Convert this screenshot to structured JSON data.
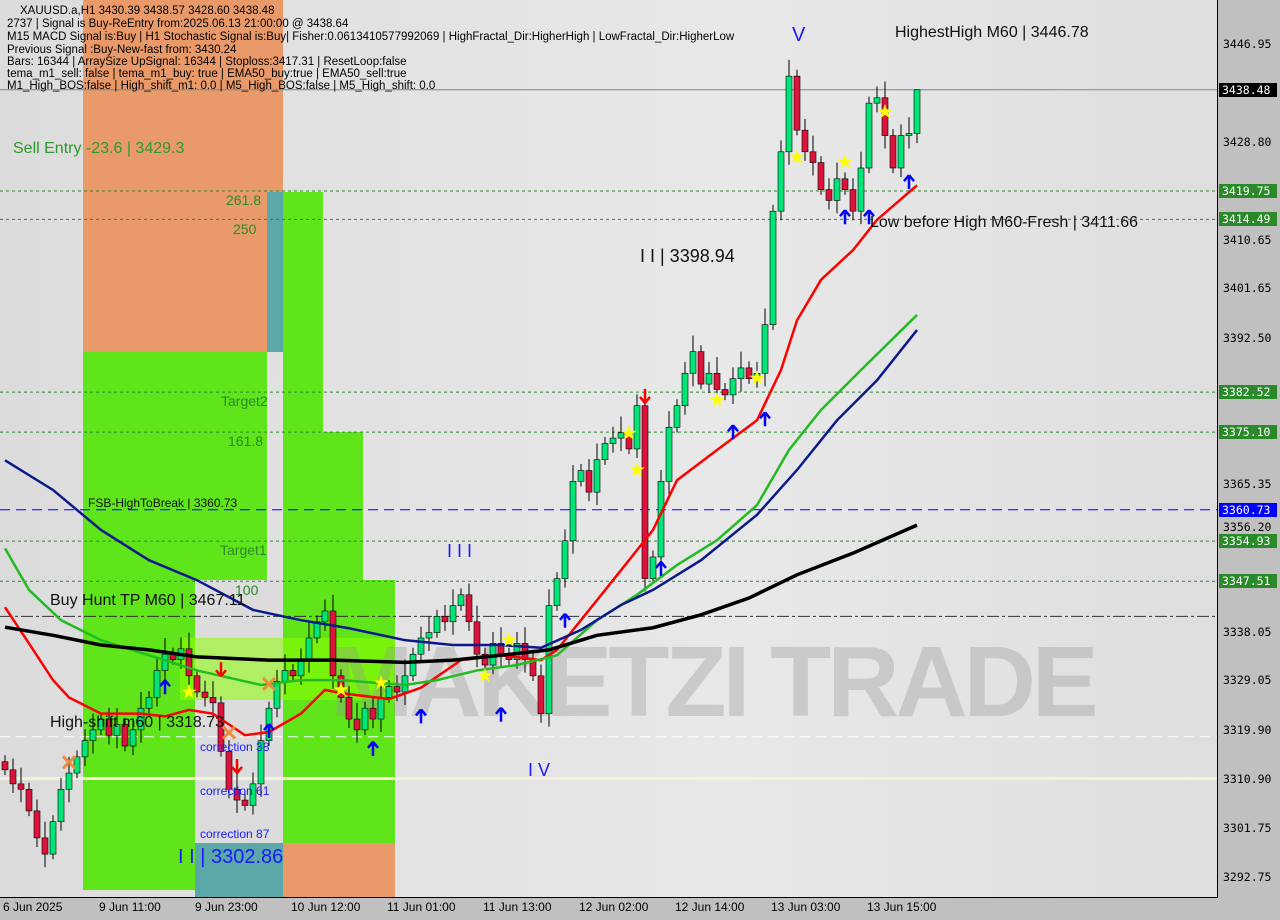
{
  "header": {
    "symbol_line": "XAUUSD.a,H1  3430.39 3438.57 3428.60 3438.48",
    "lines": [
      "2737 | Signal is Buy-ReEntry from:2025.06.13 21:00:00 @ 3438.64",
      "M15 MACD Signal is:Buy | H1 Stochastic Signal is:Buy| Fisher:0.0613410577992069 | HighFractal_Dir:HigherHigh | LowFractal_Dir:HigherLow",
      "Previous Signal :Buy-New-fast from: 3430.24",
      "Bars: 16344 | ArraySize UpSignal: 16344 | Stoploss:3417.31 | ResetLoop:false",
      "tema_m1_sell: false | tema_m1_buy: true | EMA50_buy:true | EMA50_sell:true",
      "M1_High_BOS:false | High_shift_m1: 0.0 | M5_High_BOS:false | M5_High_shift: 0.0"
    ]
  },
  "watermark": "MAKETZI TRADE",
  "labels": {
    "highest_high": "HighestHigh    M60 | 3446.78",
    "sell_entry": "Sell Entry -23.6 | 3429.3",
    "fib_2618": "261.8",
    "fib_250": "250",
    "target2": "Target2",
    "fib_1618": "161.8",
    "fsb": "FSB-HighToBreak | 3360.73",
    "target1": "Target1",
    "fib_100": "100",
    "buy_hunt": "Buy Hunt TP M60 | 3467.11",
    "high_shift": "High-shift m60 | 3318.73",
    "corr38": "correction 38",
    "corr61": "correction 61",
    "corr87": "correction 87",
    "wave2_low": "I I | 3302.86",
    "wave2_high": "I I | 3398.94",
    "wave3": "I I I",
    "wave4": "I V",
    "wave5": "V",
    "low_before_high": "Low before High    M60-Fresh | 3411.66"
  },
  "chart_data": {
    "type": "candlestick",
    "symbol": "XAUUSD.a",
    "timeframe": "H1",
    "ylim": [
      3288,
      3452
    ],
    "y_ticks": [
      "3446.95",
      "3428.80",
      "3410.65",
      "3401.65",
      "3392.50",
      "3365.35",
      "3356.20",
      "3338.05",
      "3329.05",
      "3319.90",
      "3310.90",
      "3301.75",
      "3292.75"
    ],
    "x_ticks": [
      "6 Jun 2025",
      "9 Jun 11:00",
      "9 Jun 23:00",
      "10 Jun 12:00",
      "11 Jun 01:00",
      "11 Jun 13:00",
      "12 Jun 02:00",
      "12 Jun 14:00",
      "13 Jun 03:00",
      "13 Jun 15:00"
    ],
    "last_candle": {
      "open": 3430.39,
      "high": 3438.57,
      "low": 3428.6,
      "close": 3438.48
    },
    "closes": [
      3312.6,
      3310,
      3309,
      3305,
      3300,
      3297,
      3303,
      3309,
      3312,
      3315,
      3318,
      3320,
      3322,
      3319,
      3321,
      3317,
      3320,
      3324,
      3326,
      3331,
      3334,
      3333,
      3335,
      3330,
      3327,
      3326,
      3325,
      3316,
      3309,
      3307,
      3306,
      3310,
      3318,
      3324,
      3329,
      3331,
      3330,
      3333,
      3337,
      3340,
      3342,
      3330,
      3326,
      3322,
      3320,
      3324,
      3322,
      3326,
      3328,
      3327,
      3330,
      3334,
      3337,
      3338,
      3341,
      3340,
      3343,
      3345,
      3340,
      3334,
      3332,
      3336,
      3334,
      3333,
      3336,
      3333,
      3330,
      3323,
      3343,
      3348,
      3355,
      3366,
      3368,
      3364,
      3370,
      3373,
      3374,
      3375,
      3372,
      3380,
      3348,
      3352,
      3366,
      3376,
      3380,
      3386,
      3390,
      3384,
      3386,
      3383,
      3382,
      3385,
      3387,
      3385,
      3386,
      3395,
      3416,
      3427,
      3441,
      3431,
      3427,
      3425,
      3420,
      3418,
      3422,
      3420,
      3416,
      3424,
      3436,
      3437,
      3430,
      3424,
      3430,
      3430.39,
      3438.48
    ],
    "moving_averages": [
      {
        "color": "#ff0000",
        "points": [
          [
            0,
            3342.7
          ],
          [
            3,
            3336
          ],
          [
            6,
            3329.2
          ],
          [
            8,
            3326
          ],
          [
            12,
            3323
          ],
          [
            17,
            3323
          ],
          [
            20,
            3322.5
          ],
          [
            23,
            3323.7
          ],
          [
            26,
            3323
          ],
          [
            30,
            3319
          ],
          [
            33,
            3319.6
          ],
          [
            37,
            3323
          ],
          [
            40,
            3327.4
          ],
          [
            42,
            3326.8
          ],
          [
            48,
            3325.7
          ],
          [
            52,
            3327.8
          ],
          [
            57,
            3332.9
          ],
          [
            62,
            3333.8
          ],
          [
            67,
            3332.9
          ],
          [
            69,
            3334.8
          ],
          [
            74,
            3344
          ],
          [
            78,
            3351.4
          ],
          [
            81,
            3357
          ],
          [
            84,
            3366.2
          ],
          [
            89,
            3371.8
          ],
          [
            94,
            3377.3
          ],
          [
            97,
            3386.6
          ],
          [
            99,
            3395.8
          ],
          [
            102,
            3403.3
          ],
          [
            106,
            3408.8
          ],
          [
            109,
            3414.4
          ],
          [
            114,
            3420.8
          ]
        ]
      },
      {
        "color": "#22bb22",
        "points": [
          [
            0,
            3353.6
          ],
          [
            3,
            3345.9
          ],
          [
            7,
            3340.3
          ],
          [
            12,
            3336.6
          ],
          [
            18,
            3333.8
          ],
          [
            24,
            3331
          ],
          [
            32,
            3328.3
          ],
          [
            37,
            3329.2
          ],
          [
            42,
            3329.2
          ],
          [
            50,
            3328.3
          ],
          [
            54,
            3329.2
          ],
          [
            59,
            3331
          ],
          [
            64,
            3332
          ],
          [
            69,
            3333.8
          ],
          [
            74,
            3340.3
          ],
          [
            79,
            3345
          ],
          [
            84,
            3350.5
          ],
          [
            89,
            3355.1
          ],
          [
            94,
            3361.6
          ],
          [
            98,
            3371.8
          ],
          [
            102,
            3379.2
          ],
          [
            107,
            3386.6
          ],
          [
            114,
            3396.8
          ]
        ]
      },
      {
        "color": "#0a1a8a",
        "points": [
          [
            0,
            3369.9
          ],
          [
            6,
            3364.4
          ],
          [
            12,
            3357
          ],
          [
            18,
            3351.4
          ],
          [
            24,
            3347.7
          ],
          [
            31,
            3342.2
          ],
          [
            37,
            3340.3
          ],
          [
            43,
            3338.8
          ],
          [
            50,
            3336.6
          ],
          [
            56,
            3335.7
          ],
          [
            62,
            3335.7
          ],
          [
            67,
            3335.2
          ],
          [
            72,
            3338.5
          ],
          [
            77,
            3343.1
          ],
          [
            81,
            3345.9
          ],
          [
            87,
            3351.4
          ],
          [
            94,
            3359.8
          ],
          [
            99,
            3368.1
          ],
          [
            104,
            3377.3
          ],
          [
            109,
            3384.7
          ],
          [
            114,
            3394
          ]
        ]
      },
      {
        "color": "#000000",
        "points": [
          [
            0,
            3339
          ],
          [
            6,
            3337.5
          ],
          [
            12,
            3335.7
          ],
          [
            18,
            3334.8
          ],
          [
            24,
            3333.5
          ],
          [
            33,
            3332.9
          ],
          [
            41,
            3332.9
          ],
          [
            50,
            3332.5
          ],
          [
            56,
            3332.9
          ],
          [
            62,
            3333.8
          ],
          [
            68,
            3334.8
          ],
          [
            74,
            3337.5
          ],
          [
            81,
            3338.9
          ],
          [
            87,
            3341.3
          ],
          [
            93,
            3344.4
          ],
          [
            99,
            3348.7
          ],
          [
            106,
            3352.7
          ],
          [
            114,
            3357.9
          ]
        ]
      }
    ],
    "levels": [
      {
        "price": 3438.48,
        "style": "solid",
        "color": "#6f88a8",
        "tag": "3438.48",
        "tag_color": "#000000"
      },
      {
        "price": 3419.75,
        "style": "dotted",
        "color": "#2a8a2a",
        "tag": "3419.75",
        "tag_color": "#2a8a2a"
      },
      {
        "price": 3414.49,
        "style": "dotted",
        "color": "#2a8a2a",
        "tag": "3414.49",
        "tag_color": "#2a8a2a"
      },
      {
        "price": 3382.52,
        "style": "dotted",
        "color": "#2a8a2a",
        "tag": "3382.52",
        "tag_color": "#2a8a2a"
      },
      {
        "price": 3375.1,
        "style": "dotted",
        "color": "#2a8a2a",
        "tag": "3375.10",
        "tag_color": "#2a8a2a"
      },
      {
        "price": 3360.73,
        "style": "dashed",
        "color": "#0000ff",
        "tag": "3360.73",
        "tag_color": "#0000ff"
      },
      {
        "price": 3354.93,
        "style": "dotted",
        "color": "#2a8a2a",
        "tag": "3354.93",
        "tag_color": "#2a8a2a"
      },
      {
        "price": 3347.51,
        "style": "dotted",
        "color": "#2a8a2a",
        "tag": "3347.51",
        "tag_color": "#2a8a2a"
      },
      {
        "price": 3341.0,
        "style": "dashdot",
        "color": "#333333"
      },
      {
        "price": 3318.73,
        "style": "dashed",
        "color": "#ffffff"
      },
      {
        "price": 3311.0,
        "style": "thick",
        "color": "#f4f2d8"
      }
    ],
    "signals": {
      "buy_arrows": [
        [
          20,
          3327.7
        ],
        [
          33,
          3319.6
        ],
        [
          46,
          3316.3
        ],
        [
          52,
          3322.3
        ],
        [
          62,
          3322.6
        ],
        [
          70,
          3340
        ],
        [
          82,
          3349.6
        ],
        [
          91,
          3374.9
        ],
        [
          95,
          3377.3
        ],
        [
          105,
          3414.7
        ],
        [
          108,
          3414.7
        ],
        [
          113,
          3421.2
        ]
      ],
      "sell_arrows": [
        [
          27,
          3331.4
        ],
        [
          29,
          3313.5
        ],
        [
          80,
          3382
        ]
      ],
      "stars": [
        [
          23,
          3327
        ],
        [
          42,
          3327.4
        ],
        [
          47,
          3328.7
        ],
        [
          60,
          3330
        ],
        [
          63,
          3336.6
        ],
        [
          78,
          3374.9
        ],
        [
          79,
          3368.1
        ],
        [
          89,
          3381
        ],
        [
          94,
          3385.1
        ],
        [
          99,
          3426
        ],
        [
          105,
          3425.1
        ],
        [
          110,
          3434.4
        ]
      ],
      "crosses": [
        [
          8,
          3314
        ],
        [
          33,
          3328.5
        ],
        [
          28,
          3319.5
        ]
      ]
    },
    "colors": {
      "bull": "#00e676",
      "bear": "#dc143c",
      "star": "#ffff00",
      "buy_arrow": "#0000ff",
      "sell_arrow": "#ff0000",
      "cross": "#f08a40"
    }
  }
}
